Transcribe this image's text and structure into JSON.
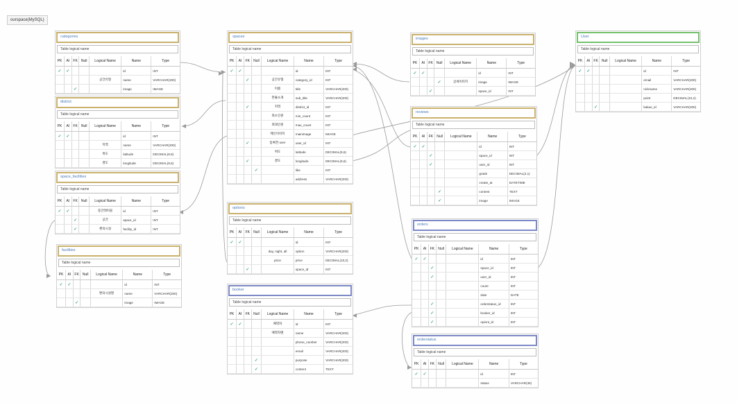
{
  "diagram_label": "ourspace(MySQL)",
  "headers": {
    "pk": "PK",
    "ai": "AI",
    "fk": "FK",
    "nn": "Null",
    "logical": "Logical Name",
    "name": "Name",
    "type": "Type"
  },
  "logical_placeholder": "Table logical name",
  "entities": {
    "categories": {
      "title": "categories",
      "rows": [
        {
          "pk": true,
          "ai": true,
          "fk": false,
          "nn": false,
          "logical": "",
          "name": "id",
          "type": "INT"
        },
        {
          "pk": false,
          "ai": false,
          "fk": false,
          "nn": false,
          "logical": "공간유형",
          "name": "name",
          "type": "VARCHAR(200)"
        },
        {
          "pk": false,
          "ai": false,
          "fk": true,
          "nn": false,
          "logical": "",
          "name": "image",
          "type": "IMAGE"
        }
      ]
    },
    "district": {
      "title": "district",
      "rows": [
        {
          "pk": true,
          "ai": true,
          "fk": false,
          "nn": false,
          "logical": "",
          "name": "id",
          "type": "INT"
        },
        {
          "pk": false,
          "ai": false,
          "fk": false,
          "nn": false,
          "logical": "지역",
          "name": "name",
          "type": "VARCHAR(200)"
        },
        {
          "pk": false,
          "ai": false,
          "fk": false,
          "nn": false,
          "logical": "위도",
          "name": "latitude",
          "type": "DECIMAL(9,6)"
        },
        {
          "pk": false,
          "ai": false,
          "fk": false,
          "nn": false,
          "logical": "경도",
          "name": "longitude",
          "type": "DECIMAL(9,6)"
        }
      ]
    },
    "space_facilities": {
      "title": "space_facilities",
      "rows": [
        {
          "pk": true,
          "ai": true,
          "fk": false,
          "nn": false,
          "logical": "중간테이블",
          "name": "id",
          "type": "INT"
        },
        {
          "pk": false,
          "ai": false,
          "fk": true,
          "nn": false,
          "logical": "공간",
          "name": "space_id",
          "type": "INT"
        },
        {
          "pk": false,
          "ai": false,
          "fk": true,
          "nn": false,
          "logical": "편의시설",
          "name": "facility_id",
          "type": "INT"
        }
      ]
    },
    "facilities": {
      "title": "facilities",
      "rows": [
        {
          "pk": true,
          "ai": true,
          "fk": false,
          "nn": false,
          "logical": "",
          "name": "id",
          "type": "INT"
        },
        {
          "pk": false,
          "ai": false,
          "fk": false,
          "nn": false,
          "logical": "편의시설명",
          "name": "name",
          "type": "VARCHAR(200)"
        },
        {
          "pk": false,
          "ai": false,
          "fk": true,
          "nn": false,
          "logical": "",
          "name": "image",
          "type": "IMAGE"
        }
      ]
    },
    "spaces": {
      "title": "spaces",
      "rows": [
        {
          "pk": true,
          "ai": true,
          "fk": false,
          "nn": false,
          "logical": "",
          "name": "id",
          "type": "INT"
        },
        {
          "pk": false,
          "ai": false,
          "fk": true,
          "nn": false,
          "logical": "공간유형",
          "name": "category_id",
          "type": "INT"
        },
        {
          "pk": false,
          "ai": false,
          "fk": false,
          "nn": false,
          "logical": "이름",
          "name": "title",
          "type": "VARCHAR(200)"
        },
        {
          "pk": false,
          "ai": false,
          "fk": false,
          "nn": false,
          "logical": "한줄소개",
          "name": "sub_title",
          "type": "VARCHAR(200)"
        },
        {
          "pk": false,
          "ai": false,
          "fk": true,
          "nn": false,
          "logical": "지역",
          "name": "district_id",
          "type": "INT"
        },
        {
          "pk": false,
          "ai": false,
          "fk": false,
          "nn": false,
          "logical": "최소인원",
          "name": "min_count",
          "type": "INT"
        },
        {
          "pk": false,
          "ai": false,
          "fk": false,
          "nn": false,
          "logical": "최대인원",
          "name": "max_count",
          "type": "INT"
        },
        {
          "pk": false,
          "ai": false,
          "fk": false,
          "nn": false,
          "logical": "메인이미지",
          "name": "mainimage",
          "type": "IMAGE"
        },
        {
          "pk": false,
          "ai": false,
          "fk": true,
          "nn": false,
          "logical": "등록한 user",
          "name": "user_id",
          "type": "INT"
        },
        {
          "pk": false,
          "ai": false,
          "fk": false,
          "nn": false,
          "logical": "위도",
          "name": "latitude",
          "type": "DECIMAL(9,6)"
        },
        {
          "pk": false,
          "ai": false,
          "fk": true,
          "nn": false,
          "logical": "경도",
          "name": "longitude",
          "type": "DECIMAL(9,6)"
        },
        {
          "pk": false,
          "ai": false,
          "fk": false,
          "nn": true,
          "logical": "",
          "name": "like",
          "type": "INT"
        },
        {
          "pk": false,
          "ai": false,
          "fk": false,
          "nn": false,
          "logical": "",
          "name": "address",
          "type": "VARCHAR(200)"
        }
      ]
    },
    "options": {
      "title": "options",
      "rows": [
        {
          "pk": true,
          "ai": true,
          "fk": false,
          "nn": false,
          "logical": "",
          "name": "id",
          "type": "INT"
        },
        {
          "pk": false,
          "ai": false,
          "fk": false,
          "nn": false,
          "logical": "day, night, all",
          "name": "option",
          "type": "VARCHAR(200)"
        },
        {
          "pk": false,
          "ai": false,
          "fk": false,
          "nn": false,
          "logical": "price",
          "name": "price",
          "type": "DECIMAL(10,2)"
        },
        {
          "pk": false,
          "ai": false,
          "fk": true,
          "nn": false,
          "logical": "",
          "name": "space_id",
          "type": "INT"
        }
      ]
    },
    "booker": {
      "title": "booker",
      "rows": [
        {
          "pk": true,
          "ai": true,
          "fk": false,
          "nn": false,
          "logical": "예약자",
          "name": "id",
          "type": "INT"
        },
        {
          "pk": false,
          "ai": false,
          "fk": false,
          "nn": false,
          "logical": "예약자명",
          "name": "name",
          "type": "VARCHAR(200)"
        },
        {
          "pk": false,
          "ai": false,
          "fk": false,
          "nn": false,
          "logical": "",
          "name": "phone_number",
          "type": "VARCHAR(200)"
        },
        {
          "pk": false,
          "ai": false,
          "fk": false,
          "nn": false,
          "logical": "",
          "name": "email",
          "type": "VARCHAR(200)"
        },
        {
          "pk": false,
          "ai": false,
          "fk": false,
          "nn": true,
          "logical": "",
          "name": "purpose",
          "type": "VARCHAR(200)"
        },
        {
          "pk": false,
          "ai": false,
          "fk": false,
          "nn": true,
          "logical": "",
          "name": "content",
          "type": "TEXT"
        }
      ]
    },
    "images": {
      "title": "images",
      "rows": [
        {
          "pk": true,
          "ai": true,
          "fk": false,
          "nn": false,
          "logical": "",
          "name": "id",
          "type": "INT"
        },
        {
          "pk": false,
          "ai": false,
          "fk": false,
          "nn": true,
          "logical": "상세이미지",
          "name": "image",
          "type": "IMAGE"
        },
        {
          "pk": false,
          "ai": false,
          "fk": true,
          "nn": false,
          "logical": "",
          "name": "space_id",
          "type": "INT"
        }
      ]
    },
    "reviews": {
      "title": "reviews",
      "rows": [
        {
          "pk": true,
          "ai": true,
          "fk": false,
          "nn": false,
          "logical": "",
          "name": "id",
          "type": "INT"
        },
        {
          "pk": false,
          "ai": false,
          "fk": true,
          "nn": false,
          "logical": "",
          "name": "space_id",
          "type": "INT"
        },
        {
          "pk": false,
          "ai": false,
          "fk": true,
          "nn": false,
          "logical": "",
          "name": "user_id",
          "type": "INT"
        },
        {
          "pk": false,
          "ai": false,
          "fk": false,
          "nn": false,
          "logical": "",
          "name": "grade",
          "type": "DECIMAL(2,1)"
        },
        {
          "pk": false,
          "ai": false,
          "fk": false,
          "nn": false,
          "logical": "",
          "name": "create_at",
          "type": "DATETIME"
        },
        {
          "pk": false,
          "ai": false,
          "fk": false,
          "nn": true,
          "logical": "",
          "name": "content",
          "type": "TEXT"
        },
        {
          "pk": false,
          "ai": false,
          "fk": false,
          "nn": true,
          "logical": "",
          "name": "image",
          "type": "IMAGE"
        }
      ]
    },
    "orders": {
      "title": "orders",
      "rows": [
        {
          "pk": true,
          "ai": true,
          "fk": false,
          "nn": false,
          "logical": "",
          "name": "id",
          "type": "INT"
        },
        {
          "pk": false,
          "ai": false,
          "fk": true,
          "nn": false,
          "logical": "",
          "name": "space_id",
          "type": "INT"
        },
        {
          "pk": false,
          "ai": false,
          "fk": true,
          "nn": false,
          "logical": "",
          "name": "user_id",
          "type": "INT"
        },
        {
          "pk": false,
          "ai": false,
          "fk": false,
          "nn": false,
          "logical": "",
          "name": "count",
          "type": "INT"
        },
        {
          "pk": false,
          "ai": false,
          "fk": false,
          "nn": false,
          "logical": "",
          "name": "date",
          "type": "DATE"
        },
        {
          "pk": false,
          "ai": false,
          "fk": true,
          "nn": false,
          "logical": "",
          "name": "orderstatus_id",
          "type": "INT"
        },
        {
          "pk": false,
          "ai": false,
          "fk": true,
          "nn": false,
          "logical": "",
          "name": "booker_id",
          "type": "INT"
        },
        {
          "pk": false,
          "ai": false,
          "fk": true,
          "nn": false,
          "logical": "",
          "name": "opiont_id",
          "type": "INT"
        }
      ]
    },
    "orderstatus": {
      "title": "orderstatus",
      "rows": [
        {
          "pk": true,
          "ai": true,
          "fk": false,
          "nn": false,
          "logical": "",
          "name": "id",
          "type": "INT"
        },
        {
          "pk": false,
          "ai": false,
          "fk": false,
          "nn": false,
          "logical": "",
          "name": "status",
          "type": "VARCHAR(45)"
        }
      ]
    },
    "user": {
      "title": "User",
      "rows": [
        {
          "pk": true,
          "ai": true,
          "fk": false,
          "nn": false,
          "logical": "",
          "name": "id",
          "type": "INT"
        },
        {
          "pk": false,
          "ai": false,
          "fk": false,
          "nn": false,
          "logical": "",
          "name": "email",
          "type": "VARCHAR(200)"
        },
        {
          "pk": false,
          "ai": false,
          "fk": false,
          "nn": false,
          "logical": "",
          "name": "nickname",
          "type": "VARCHAR(200)"
        },
        {
          "pk": false,
          "ai": false,
          "fk": false,
          "nn": false,
          "logical": "",
          "name": "point",
          "type": "DECIMAL(10,2)"
        },
        {
          "pk": false,
          "ai": false,
          "fk": true,
          "nn": false,
          "logical": "",
          "name": "kakao_id",
          "type": "VARCHAR(200)"
        }
      ]
    }
  },
  "colors": {
    "gold": "#c9b06b",
    "blue": "#7c88c6",
    "green": "#73c16a",
    "check": "#3a9f8e",
    "title_text": "#4a7bb7"
  }
}
